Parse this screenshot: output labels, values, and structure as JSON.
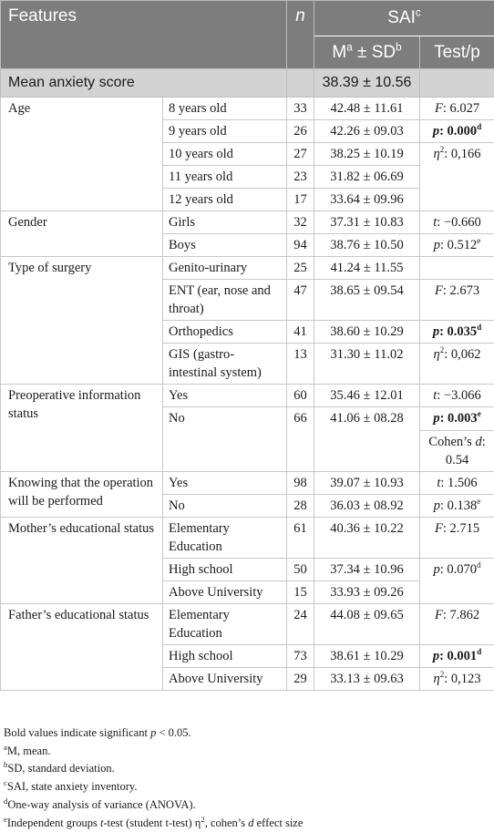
{
  "header": {
    "features": "Features",
    "n": "n",
    "sai": "SAI",
    "sai_sup": "c",
    "m": "M",
    "m_sup": "a",
    "pm": " ± SD",
    "sd_sup": "b",
    "test": "Test/p"
  },
  "mean_row": {
    "label": "Mean anxiety score",
    "value": "38.39 ± 10.56"
  },
  "age": {
    "feature": "Age",
    "rows": [
      {
        "sub": "8 years old",
        "n": "33",
        "val": "42.48 ± 11.61"
      },
      {
        "sub": "9 years old",
        "n": "26",
        "val": "42.26 ± 09.03"
      },
      {
        "sub": "10 years old",
        "n": "27",
        "val": "38.25 ± 10.19"
      },
      {
        "sub": "11 years old",
        "n": "23",
        "val": "31.82 ± 06.69"
      },
      {
        "sub": "12 years old",
        "n": "17",
        "val": "33.64 ± 09.96"
      }
    ],
    "t1_key": "F",
    "t1_val": ": 6.027",
    "t2_key": "p",
    "t2_val": ": 0.000",
    "t2_sup": "d",
    "t3_key": "η",
    "t3_sup": "2",
    "t3_val": ": 0,166"
  },
  "gender": {
    "feature": "Gender",
    "rows": [
      {
        "sub": "Girls",
        "n": "32",
        "val": "37.31 ± 10.83"
      },
      {
        "sub": "Boys",
        "n": "94",
        "val": "38.76 ± 10.50"
      }
    ],
    "t1_key": "t",
    "t1_val": ": −0.660",
    "t2_key": "p",
    "t2_val": ": 0.512",
    "t2_sup": "e"
  },
  "surgery": {
    "feature": "Type of surgery",
    "rows": [
      {
        "sub": "Genito-urinary",
        "n": "25",
        "val": "41.24 ± 11.55"
      },
      {
        "sub": "ENT (ear, nose and throat)",
        "n": "47",
        "val": "38.65 ± 09.54"
      },
      {
        "sub": "Orthopedics",
        "n": "41",
        "val": "38.60 ± 10.29"
      },
      {
        "sub": "GIS (gastro-intestinal system)",
        "n": "13",
        "val": "31.30 ± 11.02"
      }
    ],
    "t1_key": "F",
    "t1_val": ": 2.673",
    "t2_key": "p",
    "t2_val": ": 0.035",
    "t2_sup": "d",
    "t3_key": "η",
    "t3_sup": "2",
    "t3_val": ": 0,062"
  },
  "preop": {
    "feature": "Preoperative information status",
    "rows": [
      {
        "sub": "Yes",
        "n": "60",
        "val": "35.46 ± 12.01"
      },
      {
        "sub": "No",
        "n": "66",
        "val": "41.06 ± 08.28"
      }
    ],
    "t1_key": "t",
    "t1_val": ": −3.066",
    "t2_key": "p",
    "t2_val": ": 0.003",
    "t2_sup": "e",
    "t3_pre": "Cohen’s ",
    "t3_key": "d",
    "t3_val": ": 0.54"
  },
  "knowing": {
    "feature": "Knowing that the operation will be performed",
    "rows": [
      {
        "sub": "Yes",
        "n": "98",
        "val": "39.07 ± 10.93"
      },
      {
        "sub": "No",
        "n": "28",
        "val": "36.03 ± 08.92"
      }
    ],
    "t1_key": "t",
    "t1_val": ": 1.506",
    "t2_key": "p",
    "t2_val": ": 0.138",
    "t2_sup": "e"
  },
  "mother": {
    "feature": "Mother’s educational status",
    "rows": [
      {
        "sub": "Elementary Education",
        "n": "61",
        "val": "40.36 ± 10.22"
      },
      {
        "sub": "High school",
        "n": "50",
        "val": "37.34 ± 10.96"
      },
      {
        "sub": "Above University",
        "n": "15",
        "val": "33.93 ± 09.26"
      }
    ],
    "t1_key": "F",
    "t1_val": ": 2.715",
    "t2_key": "p",
    "t2_val": ": 0.070",
    "t2_sup": "d"
  },
  "father": {
    "feature": "Father’s educational status",
    "rows": [
      {
        "sub": "Elementary Education",
        "n": "24",
        "val": "44.08 ± 09.65"
      },
      {
        "sub": "High school",
        "n": "73",
        "val": "38.61 ± 10.29"
      },
      {
        "sub": "Above University",
        "n": "29",
        "val": "33.13 ± 09.63"
      }
    ],
    "t1_key": "F",
    "t1_val": ": 7.862",
    "t2_key": "p",
    "t2_val": ": 0.001",
    "t2_sup": "d",
    "t3_key": "η",
    "t3_sup": "2",
    "t3_val": ": 0,123"
  },
  "notes": {
    "bold": {
      "pre": "Bold values indicate significant ",
      "p": "p",
      "post": " < 0.05."
    },
    "a": {
      "sup": "a",
      "text": "M, mean."
    },
    "b": {
      "sup": "b",
      "text": "SD, standard deviation."
    },
    "c": {
      "sup": "c",
      "text": "SAI, state anxiety inventory."
    },
    "d": {
      "sup": "d",
      "text": "One-way analysis of variance (ANOVA)."
    },
    "e": {
      "sup": "e",
      "pre": "Independent groups ",
      "t": "t",
      "mid": "-test (student t-test) η",
      "sup2": "2",
      "mid2": ", cohen’s ",
      "d": "d",
      "post": " effect size"
    }
  },
  "colors": {
    "header_bg": "#7d7d7d",
    "mean_row_bg": "#d3d3d3",
    "border": "#c8c8c8"
  }
}
